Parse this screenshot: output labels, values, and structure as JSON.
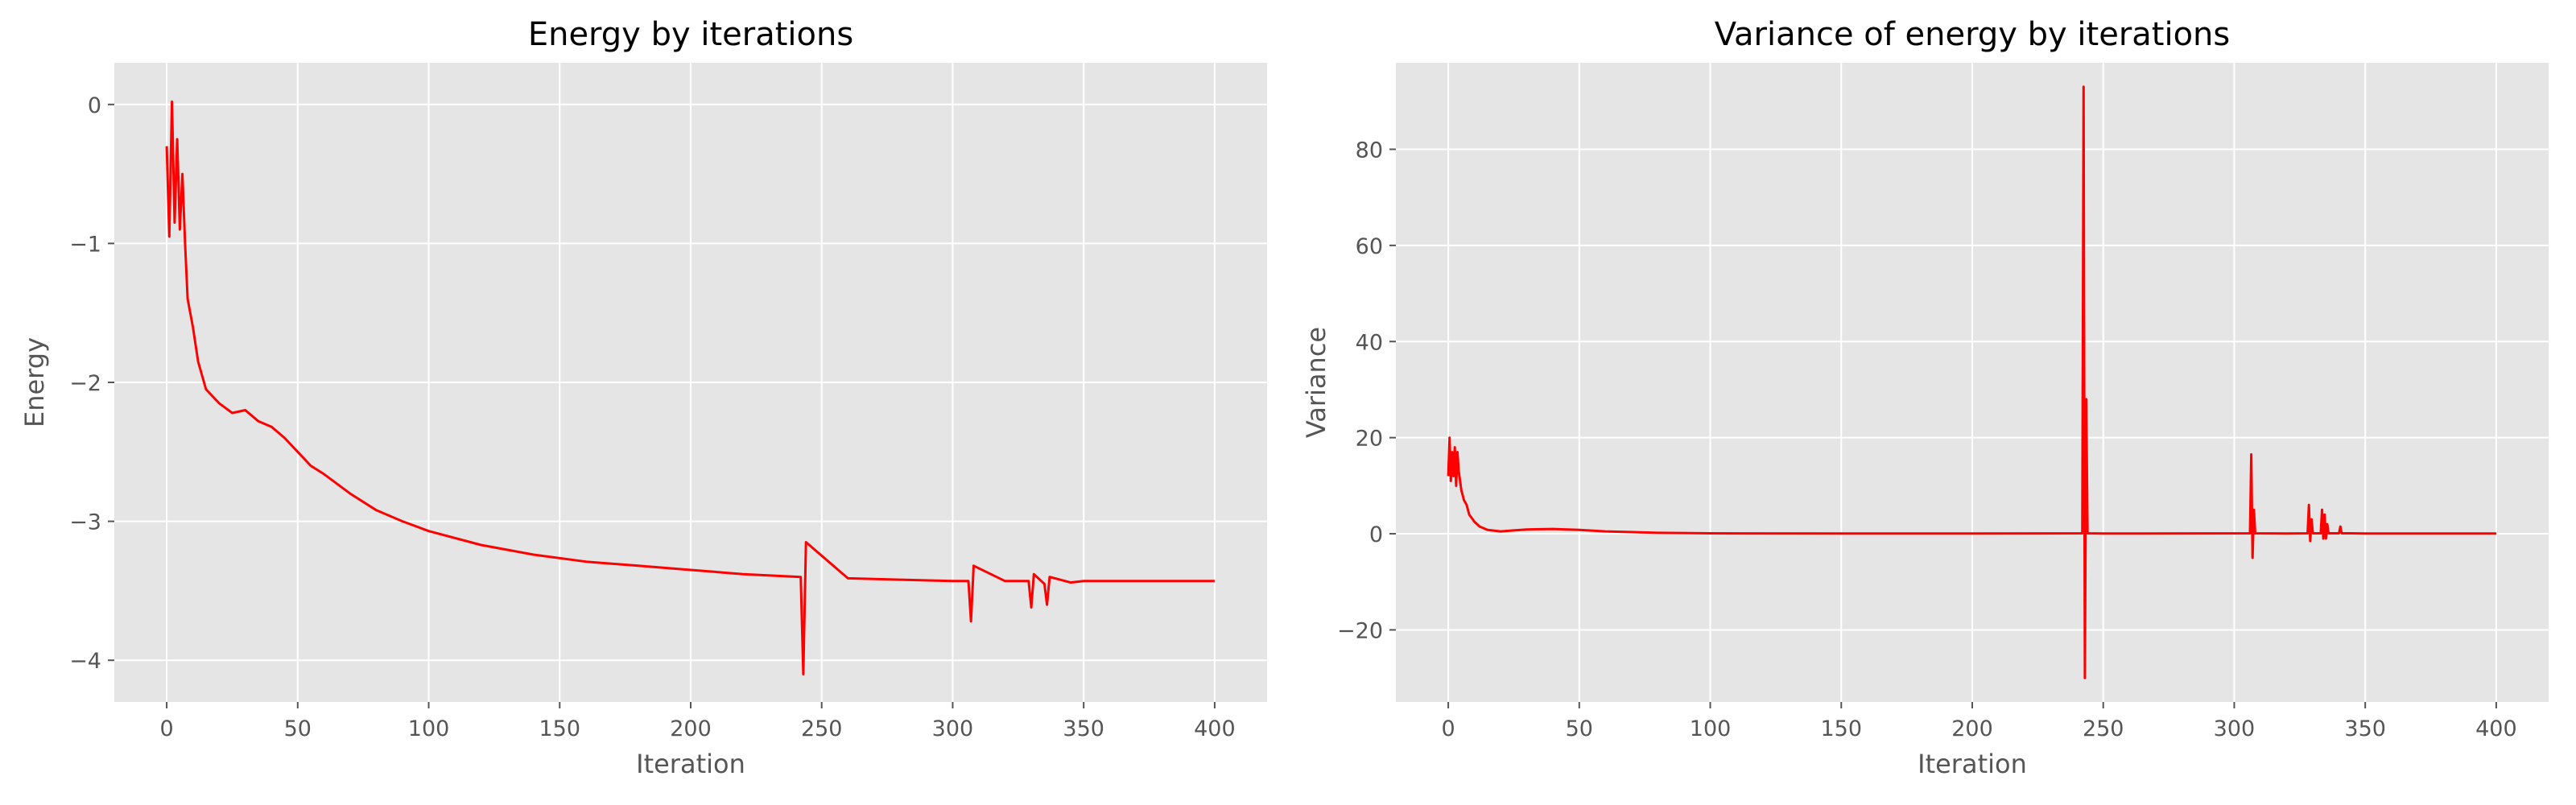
{
  "chart_data": [
    {
      "type": "line",
      "title": "Energy by iterations",
      "xlabel": "Iteration",
      "ylabel": "Energy",
      "xlim": [
        -20,
        420
      ],
      "ylim": [
        -4.3,
        0.3
      ],
      "xticks": [
        0,
        50,
        100,
        150,
        200,
        250,
        300,
        350,
        400
      ],
      "yticks": [
        0,
        -1,
        -2,
        -3,
        -4
      ],
      "xtick_labels": [
        "0",
        "50",
        "100",
        "150",
        "200",
        "250",
        "300",
        "350",
        "400"
      ],
      "ytick_labels": [
        "0",
        "−1",
        "−2",
        "−3",
        "−4"
      ],
      "grid": true,
      "background": "#e5e5e5",
      "line_color": "#ff0000",
      "series": [
        {
          "x": [
            0,
            1,
            2,
            3,
            4,
            5,
            6,
            7,
            8,
            10,
            12,
            15,
            20,
            25,
            30,
            35,
            40,
            45,
            50,
            55,
            60,
            70,
            80,
            90,
            100,
            120,
            140,
            160,
            180,
            200,
            220,
            242,
            243,
            244,
            260,
            280,
            300,
            306,
            307,
            308,
            320,
            329,
            330,
            331,
            335,
            336,
            337,
            345,
            350,
            360,
            380,
            400
          ],
          "y": [
            -0.3,
            -0.95,
            0.02,
            -0.85,
            -0.25,
            -0.9,
            -0.5,
            -1.0,
            -1.4,
            -1.6,
            -1.85,
            -2.05,
            -2.15,
            -2.22,
            -2.2,
            -2.28,
            -2.32,
            -2.4,
            -2.5,
            -2.6,
            -2.66,
            -2.8,
            -2.92,
            -3.0,
            -3.07,
            -3.17,
            -3.24,
            -3.29,
            -3.32,
            -3.35,
            -3.38,
            -3.4,
            -4.1,
            -3.15,
            -3.41,
            -3.42,
            -3.43,
            -3.43,
            -3.72,
            -3.32,
            -3.43,
            -3.43,
            -3.62,
            -3.38,
            -3.45,
            -3.6,
            -3.4,
            -3.44,
            -3.43,
            -3.43,
            -3.43,
            -3.43
          ]
        }
      ]
    },
    {
      "type": "line",
      "title": "Variance of energy by iterations",
      "xlabel": "Iteration",
      "ylabel": "Variance",
      "xlim": [
        -20,
        420
      ],
      "ylim": [
        -35,
        98
      ],
      "xticks": [
        0,
        50,
        100,
        150,
        200,
        250,
        300,
        350,
        400
      ],
      "yticks": [
        80,
        60,
        40,
        20,
        0,
        -20
      ],
      "xtick_labels": [
        "0",
        "50",
        "100",
        "150",
        "200",
        "250",
        "300",
        "350",
        "400"
      ],
      "ytick_labels": [
        "80",
        "60",
        "40",
        "20",
        "0",
        "−20"
      ],
      "grid": true,
      "background": "#e5e5e5",
      "line_color": "#ff0000",
      "series": [
        {
          "x": [
            0,
            0.5,
            1,
            1.5,
            2,
            2.5,
            3,
            3.5,
            4,
            5,
            6,
            7,
            8,
            10,
            12,
            15,
            20,
            25,
            30,
            40,
            50,
            60,
            80,
            100,
            150,
            200,
            242,
            242.5,
            243,
            243.5,
            244,
            250,
            306,
            306.5,
            307,
            307.5,
            308,
            320,
            328,
            328.5,
            329,
            329.5,
            330,
            333,
            333.5,
            334,
            334.5,
            335,
            335.5,
            336,
            340,
            340.5,
            341,
            345,
            350,
            400
          ],
          "y": [
            12,
            20,
            11,
            17,
            12,
            18,
            10,
            17,
            13,
            9,
            7,
            6,
            4,
            2.5,
            1.5,
            0.8,
            0.5,
            0.7,
            0.9,
            1,
            0.8,
            0.5,
            0.2,
            0.1,
            0.05,
            0.05,
            0.1,
            93,
            -30,
            28,
            0.1,
            0.05,
            0.1,
            16.5,
            -5,
            5,
            0.1,
            0.05,
            0.1,
            6,
            -1.5,
            3,
            0.1,
            0.1,
            5,
            -1,
            4,
            -1,
            2,
            0.1,
            0.1,
            1.5,
            0.1,
            0.1,
            0.05,
            0.05
          ]
        }
      ]
    }
  ]
}
